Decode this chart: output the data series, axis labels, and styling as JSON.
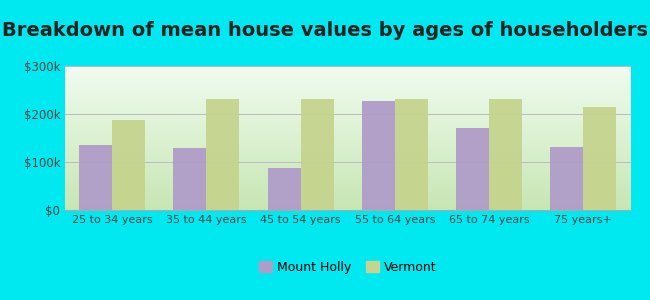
{
  "title": "Breakdown of mean house values by ages of householders",
  "categories": [
    "25 to 34 years",
    "35 to 44 years",
    "45 to 54 years",
    "55 to 64 years",
    "65 to 74 years",
    "75 years+"
  ],
  "mount_holly": [
    135000,
    130000,
    88000,
    228000,
    170000,
    132000
  ],
  "vermont": [
    188000,
    232000,
    232000,
    232000,
    232000,
    215000
  ],
  "mount_holly_color": "#b09cc8",
  "vermont_color": "#c5d48e",
  "outer_background": "#00e8f0",
  "ylim": [
    0,
    300000
  ],
  "yticks": [
    0,
    100000,
    200000,
    300000
  ],
  "ytick_labels": [
    "$0",
    "$100k",
    "$200k",
    "$300k"
  ],
  "legend_mount_holly": "Mount Holly",
  "legend_vermont": "Vermont",
  "title_fontsize": 14,
  "bar_width": 0.35,
  "grid_color": "#cccccc",
  "bg_top": "#f0faf0",
  "bg_bottom": "#d8eecc"
}
